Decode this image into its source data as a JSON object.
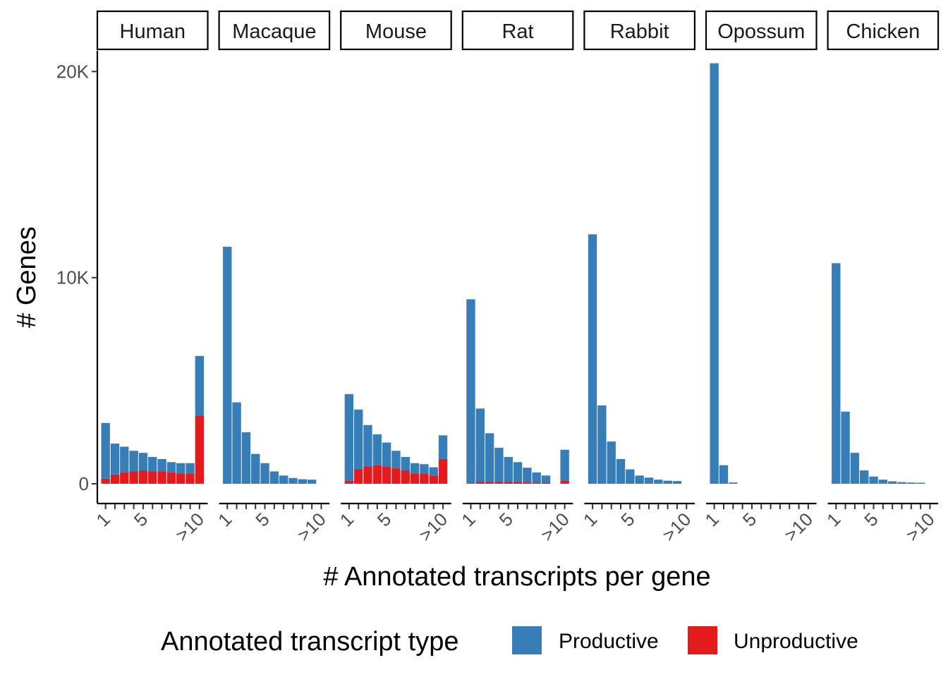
{
  "chart_data": {
    "type": "bar",
    "stacked": true,
    "facets": [
      "Human",
      "Macaque",
      "Mouse",
      "Rat",
      "Rabbit",
      "Opossum",
      "Chicken"
    ],
    "categories": [
      "1",
      "2",
      "3",
      "4",
      "5",
      "6",
      "7",
      "8",
      "9",
      "10",
      ">10"
    ],
    "x_tick_labels": [
      "1",
      "5",
      ">10"
    ],
    "ylabel": "# Genes",
    "xlabel": "# Annotated transcripts per gene",
    "ylim": [
      0,
      20800
    ],
    "y_ticks": [
      0,
      10000,
      20000
    ],
    "y_tick_labels": [
      "0",
      "10K",
      "20K"
    ],
    "grid": false,
    "legend": {
      "title": "Annotated transcript type",
      "position": "bottom",
      "entries": [
        {
          "label": "Productive",
          "color": "#377EB8"
        },
        {
          "label": "Unproductive",
          "color": "#E41A1C"
        }
      ]
    },
    "panels": [
      {
        "facet": "Human",
        "productive": [
          2700,
          1500,
          1250,
          1000,
          850,
          700,
          600,
          500,
          500,
          500,
          2900
        ],
        "unproductive": [
          250,
          450,
          550,
          600,
          650,
          600,
          600,
          550,
          500,
          500,
          3300
        ]
      },
      {
        "facet": "Macaque",
        "productive": [
          11500,
          3950,
          2500,
          1450,
          1000,
          600,
          400,
          280,
          220,
          200,
          0
        ],
        "unproductive": [
          0,
          0,
          0,
          0,
          0,
          0,
          0,
          0,
          0,
          0,
          0
        ]
      },
      {
        "facet": "Mouse",
        "productive": [
          4200,
          2900,
          2000,
          1500,
          1150,
          850,
          650,
          500,
          450,
          400,
          1150
        ],
        "unproductive": [
          150,
          700,
          850,
          900,
          850,
          750,
          650,
          500,
          500,
          400,
          1200
        ]
      },
      {
        "facet": "Rat",
        "productive": [
          8950,
          3550,
          2350,
          1650,
          1200,
          950,
          700,
          500,
          350,
          0,
          1500
        ],
        "unproductive": [
          0,
          100,
          100,
          100,
          100,
          100,
          80,
          50,
          50,
          0,
          150
        ]
      },
      {
        "facet": "Rabbit",
        "productive": [
          12100,
          3800,
          2050,
          1200,
          700,
          400,
          300,
          200,
          150,
          130,
          0
        ],
        "unproductive": [
          0,
          0,
          0,
          0,
          0,
          0,
          0,
          0,
          0,
          0,
          0
        ]
      },
      {
        "facet": "Opossum",
        "productive": [
          20400,
          900,
          60,
          0,
          0,
          0,
          0,
          0,
          0,
          0,
          0
        ],
        "unproductive": [
          0,
          0,
          0,
          0,
          0,
          0,
          0,
          0,
          0,
          0,
          0
        ]
      },
      {
        "facet": "Chicken",
        "productive": [
          10700,
          3500,
          1500,
          650,
          350,
          200,
          120,
          80,
          60,
          50,
          0
        ],
        "unproductive": [
          0,
          0,
          0,
          0,
          0,
          0,
          0,
          0,
          0,
          0,
          0
        ]
      }
    ]
  }
}
